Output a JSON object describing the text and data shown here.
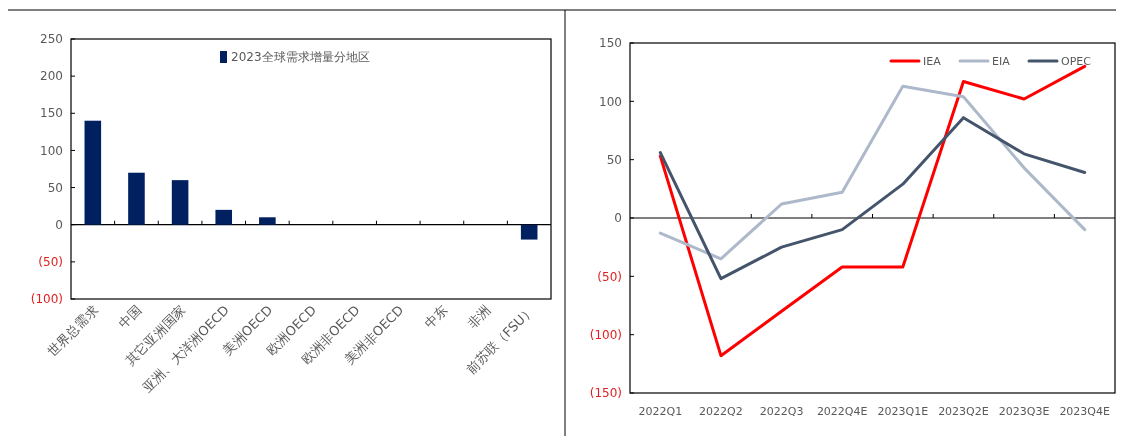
{
  "chart_data": [
    {
      "type": "bar",
      "categories": [
        "世界总需求",
        "中国",
        "其它亚洲国家",
        "亚洲、大洋洲OECD",
        "美洲OECD",
        "欧洲OECD",
        "欧洲非OECD",
        "美洲非OECD",
        "中东",
        "非洲",
        "前苏联（FSU）"
      ],
      "series": [
        {
          "name": "2023全球需求增量分地区",
          "color": "#002060",
          "values": [
            140,
            70,
            60,
            20,
            10,
            0,
            0,
            0,
            0,
            0,
            -20
          ]
        }
      ],
      "ylim": [
        -100,
        250
      ],
      "yticks": [
        {
          "value": -100,
          "label": "(100)"
        },
        {
          "value": -50,
          "label": "(50)"
        },
        0,
        50,
        100,
        150,
        200,
        250
      ],
      "legend": "top"
    },
    {
      "type": "line",
      "categories": [
        "2022Q1",
        "2022Q2",
        "2022Q3",
        "2022Q4E",
        "2023Q1E",
        "2023Q2E",
        "2023Q3E",
        "2023Q4E"
      ],
      "series": [
        {
          "name": "IEA",
          "color": "#ff0000",
          "values": [
            53,
            -118,
            -80,
            -42,
            -42,
            117,
            102,
            130
          ]
        },
        {
          "name": "EIA",
          "color": "#adb9ca",
          "values": [
            -13,
            -35,
            12,
            22,
            113,
            104,
            43,
            -10
          ]
        },
        {
          "name": "OPEC",
          "color": "#44546a",
          "values": [
            56,
            -52,
            -25,
            -10,
            29,
            86,
            55,
            39
          ]
        }
      ],
      "ylim": [
        -150,
        150
      ],
      "yticks": [
        {
          "value": -150,
          "label": "(150)"
        },
        {
          "value": -100,
          "label": "(100)"
        },
        {
          "value": -50,
          "label": "(50)"
        },
        0,
        50,
        100,
        150
      ],
      "legend": "top right",
      "marker": "none",
      "line_style": "solid"
    }
  ]
}
